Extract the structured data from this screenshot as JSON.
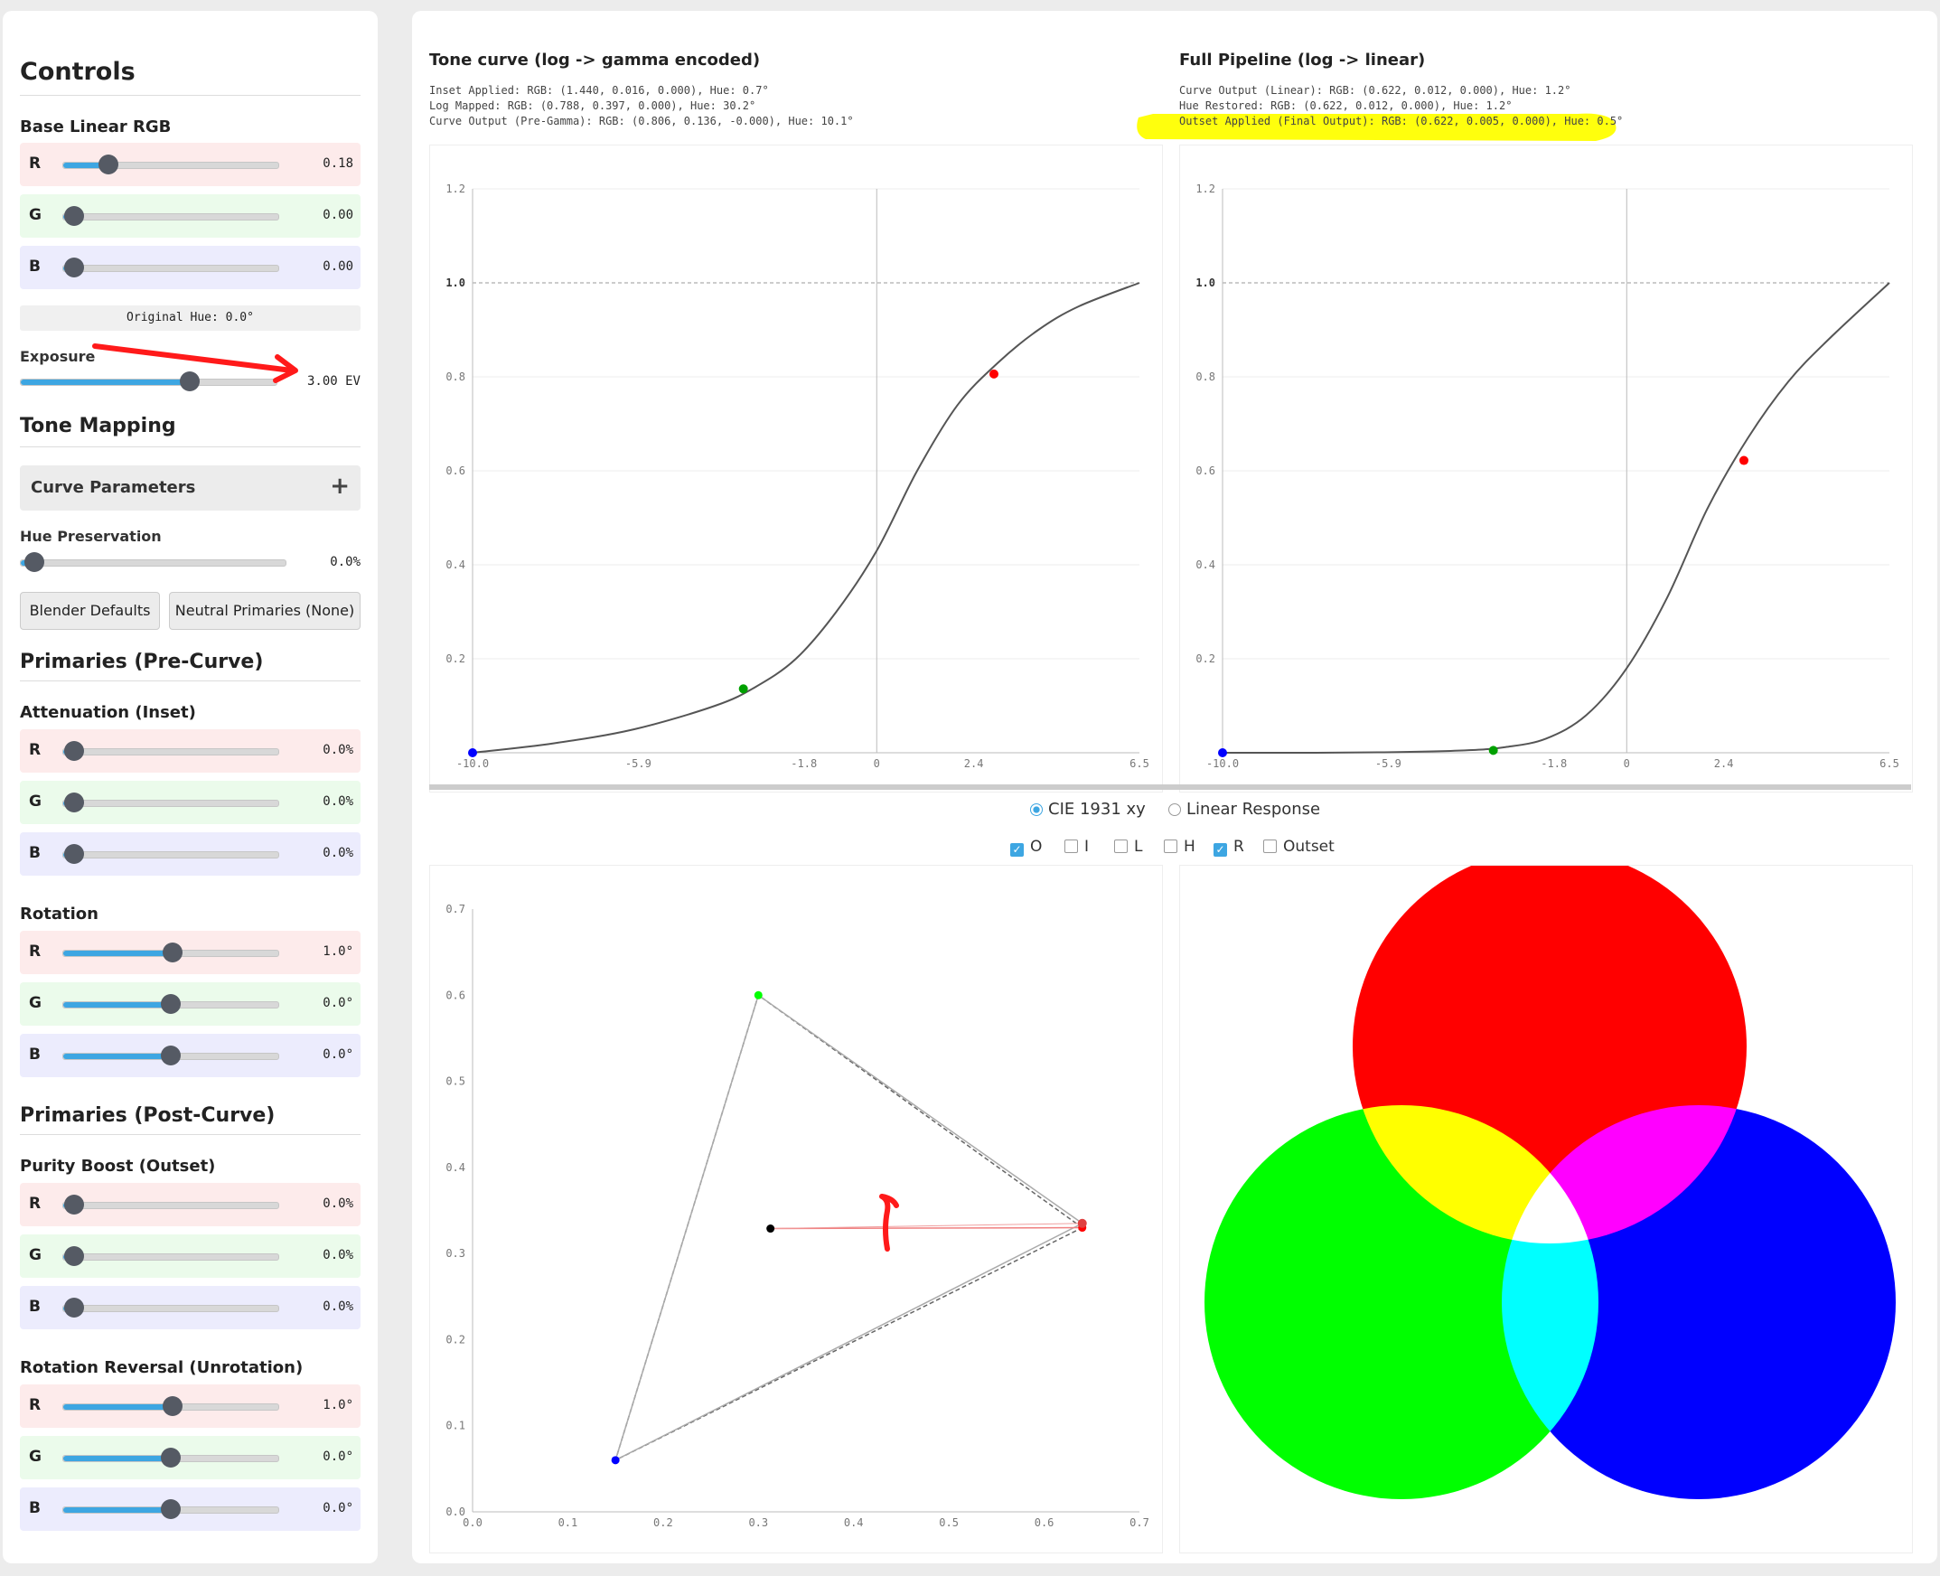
{
  "sidebar": {
    "title": "Controls",
    "base_rgb": {
      "title": "Base Linear RGB",
      "rows": [
        {
          "label": "R",
          "value": "0.18",
          "level": 0.21
        },
        {
          "label": "G",
          "value": "0.00",
          "level": 0.05
        },
        {
          "label": "B",
          "value": "0.00",
          "level": 0.05
        }
      ],
      "original_hue": "Original Hue: 0.0°"
    },
    "exposure": {
      "label": "Exposure",
      "value": "3.00 EV",
      "level": 0.66
    },
    "tone_mapping": {
      "title": "Tone Mapping",
      "accordion": "Curve Parameters",
      "accordion_icon": "+",
      "hue_preservation": {
        "label": "Hue Preservation",
        "value": "0.0%",
        "level": 0.05
      },
      "buttons": [
        "Blender Defaults",
        "Neutral Primaries (None)"
      ]
    },
    "pre_curve": {
      "title": "Primaries (Pre-Curve)",
      "attenuation": {
        "title": "Attenuation (Inset)",
        "rows": [
          {
            "label": "R",
            "value": "0.0%",
            "level": 0.05
          },
          {
            "label": "G",
            "value": "0.0%",
            "level": 0.05
          },
          {
            "label": "B",
            "value": "0.0%",
            "level": 0.05
          }
        ]
      },
      "rotation": {
        "title": "Rotation",
        "rows": [
          {
            "label": "R",
            "value": "1.0°",
            "level": 0.51
          },
          {
            "label": "G",
            "value": "0.0°",
            "level": 0.5
          },
          {
            "label": "B",
            "value": "0.0°",
            "level": 0.5
          }
        ]
      }
    },
    "post_curve": {
      "title": "Primaries (Post-Curve)",
      "purity": {
        "title": "Purity Boost (Outset)",
        "rows": [
          {
            "label": "R",
            "value": "0.0%",
            "level": 0.05
          },
          {
            "label": "G",
            "value": "0.0%",
            "level": 0.05
          },
          {
            "label": "B",
            "value": "0.0%",
            "level": 0.05
          }
        ]
      },
      "unrotation": {
        "title": "Rotation Reversal (Unrotation)",
        "rows": [
          {
            "label": "R",
            "value": "1.0°",
            "level": 0.51
          },
          {
            "label": "G",
            "value": "0.0°",
            "level": 0.5
          },
          {
            "label": "B",
            "value": "0.0°",
            "level": 0.5
          }
        ]
      }
    }
  },
  "main": {
    "chart1": {
      "title": "Tone curve (log -> gamma encoded)",
      "info": [
        "Inset Applied: RGB: (1.440, 0.016, 0.000), Hue: 0.7°",
        "Log Mapped: RGB: (0.788, 0.397, 0.000), Hue: 30.2°",
        "Curve Output (Pre-Gamma): RGB: (0.806, 0.136, -0.000), Hue: 10.1°"
      ]
    },
    "chart2": {
      "title": "Full Pipeline (log -> linear)",
      "info": [
        "Curve Output (Linear): RGB: (0.622, 0.012, 0.000), Hue: 1.2°",
        "Hue Restored: RGB: (0.622, 0.012, 0.000), Hue: 1.2°",
        "Outset Applied (Final Output): RGB: (0.622, 0.005, 0.000), Hue: 0.5°"
      ],
      "highlight_color": "#ffff00"
    },
    "view_options": [
      "CIE 1931 xy",
      "Linear Response"
    ],
    "checkboxes": [
      {
        "label": "O",
        "checked": true
      },
      {
        "label": "I",
        "checked": false
      },
      {
        "label": "L",
        "checked": false
      },
      {
        "label": "H",
        "checked": false
      },
      {
        "label": "R",
        "checked": true
      },
      {
        "label": "Outset",
        "checked": false
      }
    ]
  },
  "chart_data": [
    {
      "type": "line",
      "title": "Tone curve (log -> gamma encoded)",
      "xlim": [
        -10.0,
        6.5
      ],
      "ylim": [
        0,
        1.2
      ],
      "xticks": [
        "-10.0",
        "-5.9",
        "-1.8",
        "0",
        "2.4",
        "6.5"
      ],
      "yticks": [
        "0.2",
        "0.4",
        "0.6",
        "0.8",
        "1.0",
        "1.2"
      ],
      "curve": {
        "x": [
          -10,
          -8,
          -6,
          -4,
          -3,
          -2,
          -1,
          0,
          1,
          2,
          3,
          4,
          5,
          6.5
        ],
        "y": [
          0,
          0.02,
          0.05,
          0.1,
          0.14,
          0.2,
          0.3,
          0.43,
          0.6,
          0.74,
          0.83,
          0.9,
          0.95,
          1.0
        ]
      },
      "points": [
        {
          "x": -10,
          "y": 0,
          "color": "#0000ff"
        },
        {
          "x": -3.3,
          "y": 0.136,
          "color": "#00a000"
        },
        {
          "x": 2.9,
          "y": 0.806,
          "color": "#ff0000"
        }
      ]
    },
    {
      "type": "line",
      "title": "Full Pipeline (log -> linear)",
      "xlim": [
        -10.0,
        6.5
      ],
      "ylim": [
        0,
        1.2
      ],
      "xticks": [
        "-10.0",
        "-5.9",
        "-1.8",
        "0",
        "2.4",
        "6.5"
      ],
      "yticks": [
        "0.2",
        "0.4",
        "0.6",
        "0.8",
        "1.0",
        "1.2"
      ],
      "curve": {
        "x": [
          -10,
          -8,
          -6,
          -4,
          -3,
          -2,
          -1,
          0,
          1,
          2,
          3,
          4,
          5,
          6.5
        ],
        "y": [
          0,
          0,
          0.001,
          0.005,
          0.012,
          0.03,
          0.08,
          0.18,
          0.33,
          0.52,
          0.67,
          0.79,
          0.88,
          1.0
        ]
      },
      "points": [
        {
          "x": -10,
          "y": 0,
          "color": "#0000ff"
        },
        {
          "x": -3.3,
          "y": 0.005,
          "color": "#00a000"
        },
        {
          "x": 2.9,
          "y": 0.622,
          "color": "#ff0000"
        }
      ]
    },
    {
      "type": "scatter",
      "title": "CIE 1931 xy",
      "xlim": [
        0,
        0.7
      ],
      "ylim": [
        0,
        0.7
      ],
      "xticks": [
        "0.0",
        "0.1",
        "0.2",
        "0.3",
        "0.4",
        "0.5",
        "0.6",
        "0.7"
      ],
      "yticks": [
        "0.0",
        "0.1",
        "0.2",
        "0.3",
        "0.4",
        "0.5",
        "0.6",
        "0.7"
      ],
      "primaries": [
        {
          "x": 0.64,
          "y": 0.33,
          "color": "#ff0000"
        },
        {
          "x": 0.3,
          "y": 0.6,
          "color": "#00ff00"
        },
        {
          "x": 0.15,
          "y": 0.06,
          "color": "#0000ff"
        }
      ],
      "whitepoint": {
        "x": 0.3127,
        "y": 0.329
      },
      "rotated_red": {
        "x": 0.64,
        "y": 0.335
      }
    }
  ]
}
